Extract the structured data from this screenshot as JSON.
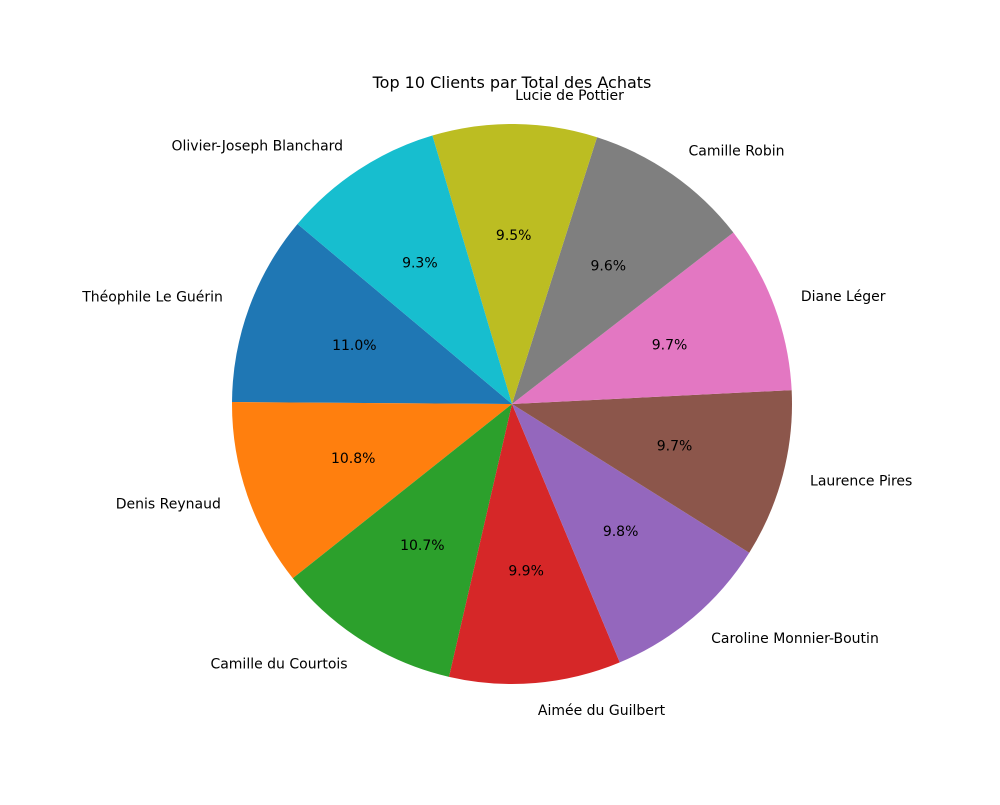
{
  "chart_data": {
    "type": "pie",
    "title": "Top 10 Clients par Total des Achats",
    "categories": [
      "Théophile Le Guérin",
      "Denis Reynaud",
      "Camille du Courtois",
      "Aimée du Guilbert",
      "Caroline Monnier-Boutin",
      "Laurence Pires",
      "Diane Léger",
      "Camille Robin",
      "Lucie de Pottier",
      "Olivier-Joseph Blanchard"
    ],
    "values": [
      11.0,
      10.8,
      10.7,
      9.9,
      9.8,
      9.7,
      9.7,
      9.6,
      9.5,
      9.3
    ],
    "percent_labels": [
      "11.0%",
      "10.8%",
      "10.7%",
      "9.9%",
      "9.8%",
      "9.7%",
      "9.7%",
      "9.6%",
      "9.5%",
      "9.3%"
    ],
    "colors": [
      "#1f77b4",
      "#ff7f0e",
      "#2ca02c",
      "#d62728",
      "#9467bd",
      "#8c564b",
      "#e377c2",
      "#7f7f7f",
      "#bcbd22",
      "#17becf"
    ],
    "start_angle_deg": 140,
    "direction": "counterclockwise"
  }
}
